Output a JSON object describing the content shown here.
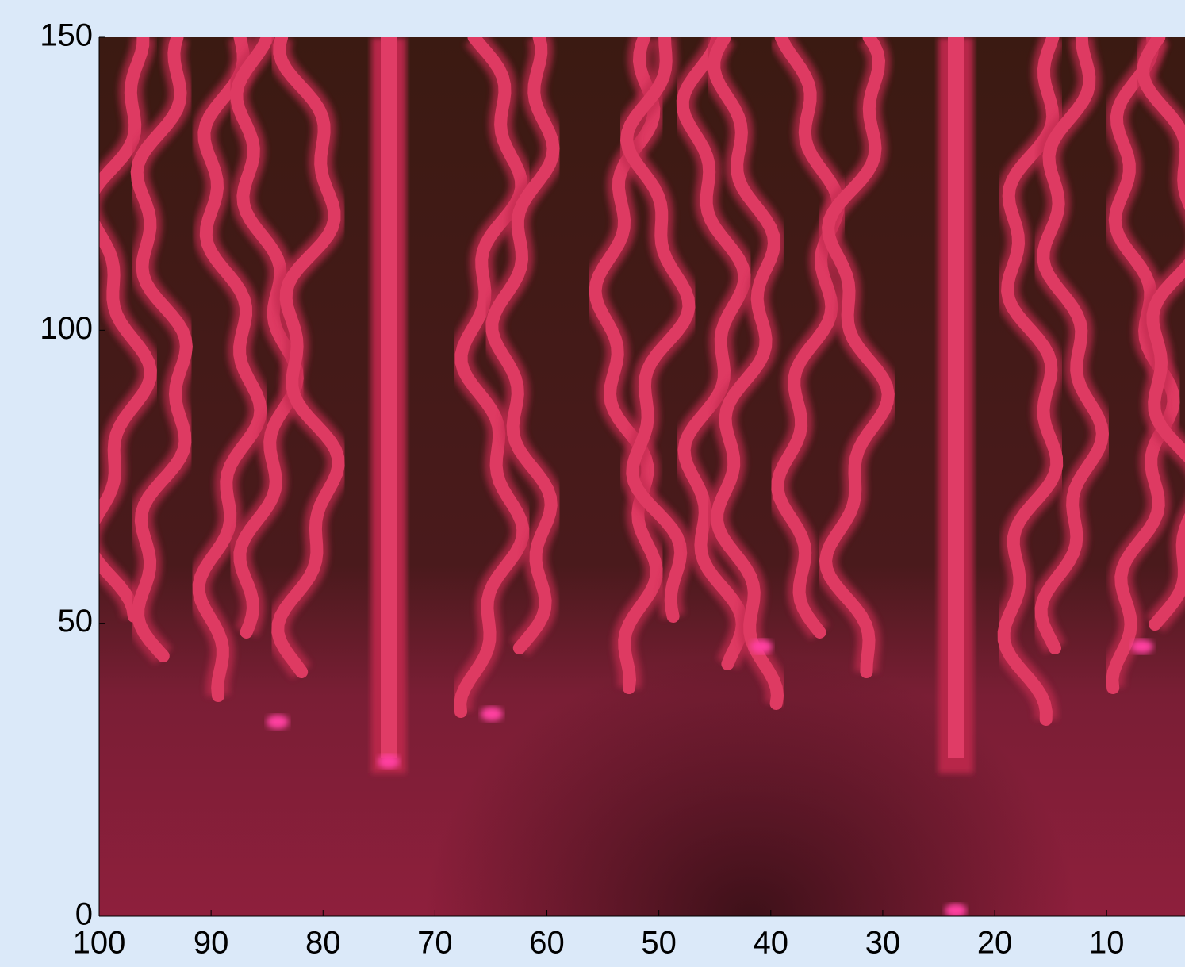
{
  "chart_data": {
    "type": "image",
    "xlim": [
      100,
      3
    ],
    "xticks": [
      100,
      90,
      80,
      70,
      60,
      50,
      40,
      30,
      20,
      10
    ],
    "ylim": [
      0,
      150
    ],
    "yticks": [
      0,
      50,
      100,
      150
    ]
  }
}
